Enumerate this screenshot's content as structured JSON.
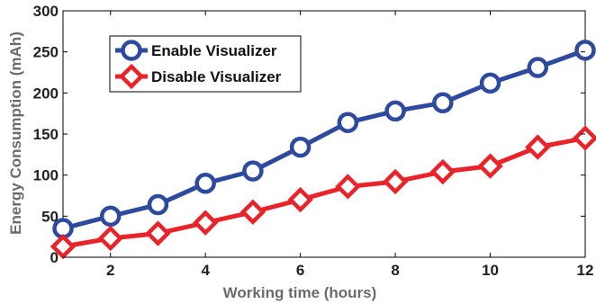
{
  "chart_data": {
    "type": "line",
    "xlabel": "Working time (hours)",
    "ylabel": "Energy Consumption (mAh)",
    "xlim": [
      1,
      12
    ],
    "ylim": [
      0,
      300
    ],
    "xticks": [
      2,
      4,
      6,
      8,
      10,
      12
    ],
    "yticks": [
      0,
      50,
      100,
      150,
      200,
      250,
      300
    ],
    "grid": false,
    "legend_position": "top-left",
    "x": [
      1,
      2,
      3,
      4,
      5,
      6,
      7,
      8,
      9,
      10,
      11,
      12
    ],
    "series": [
      {
        "name": "Enable Visualizer",
        "color": "#2e4a9e",
        "marker": "circle",
        "values": [
          35,
          50,
          64,
          90,
          105,
          134,
          164,
          178,
          188,
          212,
          231,
          252
        ]
      },
      {
        "name": "Disable Visualizer",
        "color": "#e8232a",
        "marker": "diamond",
        "values": [
          13,
          23,
          29,
          42,
          55,
          70,
          86,
          92,
          104,
          111,
          134,
          145
        ]
      }
    ]
  }
}
